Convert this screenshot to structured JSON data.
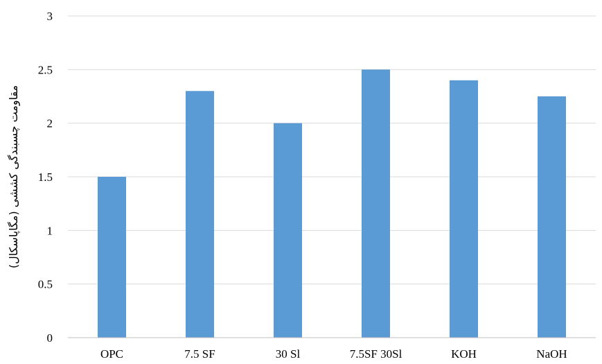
{
  "chart_data": {
    "type": "bar",
    "categories": [
      "OPC",
      "7.5 SF",
      "30 Sl",
      "7.5SF 30Sl",
      "KOH",
      "NaOH"
    ],
    "values": [
      1.5,
      2.3,
      2.0,
      2.5,
      2.4,
      2.25
    ],
    "ylabel": "مقاومت چسبندگی کششی (مگاپاسکال)",
    "xlabel": "",
    "title": "",
    "ylim": [
      0,
      3
    ],
    "yticks": [
      0,
      0.5,
      1,
      1.5,
      2,
      2.5,
      3
    ],
    "ytick_labels": [
      "0",
      "0.5",
      "1",
      "1.5",
      "2",
      "2.5",
      "3"
    ],
    "grid": true,
    "legend": "none",
    "colors": {
      "bar": "#5b9bd5",
      "grid": "#d9d9d9",
      "axis": "#bfbfbf"
    }
  }
}
